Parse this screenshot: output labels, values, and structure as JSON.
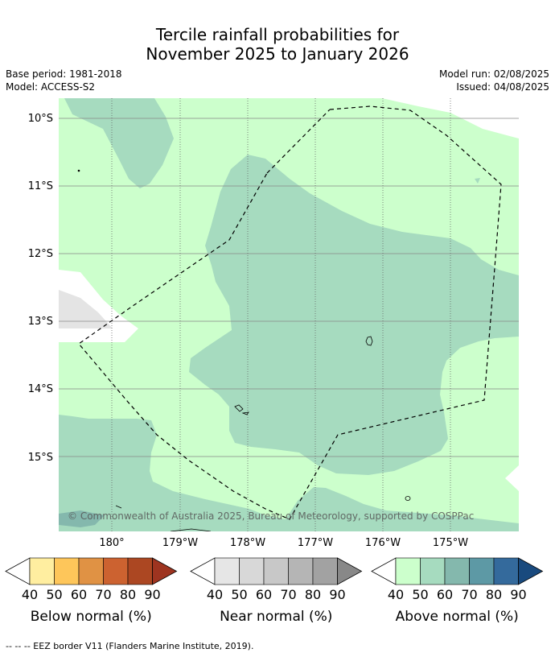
{
  "header": {
    "title_line1": "Tercile rainfall probabilities for",
    "title_line2": "November 2025 to January 2026",
    "base_period": "Base period: 1981-2018",
    "model": "Model: ACCESS-S2",
    "model_run": "Model run: 02/08/2025",
    "issued": "Issued: 04/08/2025"
  },
  "map": {
    "lat_labels": [
      "10°S",
      "11°S",
      "12°S",
      "13°S",
      "14°S",
      "15°S"
    ],
    "lon_labels": [
      "180°",
      "179°W",
      "178°W",
      "177°W",
      "176°W",
      "175°W"
    ],
    "copyright": "© Commonwealth of Australia 2025, Bureau of Meteorology, supported by COSPPac",
    "colors": {
      "above_40_50": "#ccffcc",
      "above_50_60": "#a6dbbf",
      "near_40_50": "#e6e6e6",
      "below_none": "#ffffff"
    }
  },
  "legends": [
    {
      "title": "Below normal (%)",
      "ticks": [
        "40",
        "50",
        "60",
        "70",
        "80",
        "90"
      ],
      "colors": [
        "#ffeea0",
        "#fec65a",
        "#e09244",
        "#cc6230",
        "#ac4722",
        "#9e3420"
      ]
    },
    {
      "title": "Near normal (%)",
      "ticks": [
        "40",
        "50",
        "60",
        "70",
        "80",
        "90"
      ],
      "colors": [
        "#e6e6e6",
        "#d8d8d8",
        "#c8c8c8",
        "#b5b5b5",
        "#a2a2a2",
        "#888888"
      ]
    },
    {
      "title": "Above normal (%)",
      "ticks": [
        "40",
        "50",
        "60",
        "70",
        "80",
        "90"
      ],
      "colors": [
        "#ccffcc",
        "#a6dbbf",
        "#84b8ad",
        "#5d99a5",
        "#346a9c",
        "#194a7e"
      ]
    }
  ],
  "footnote": "--  --  -- EEZ border V11 (Flanders Marine Institute, 2019)."
}
